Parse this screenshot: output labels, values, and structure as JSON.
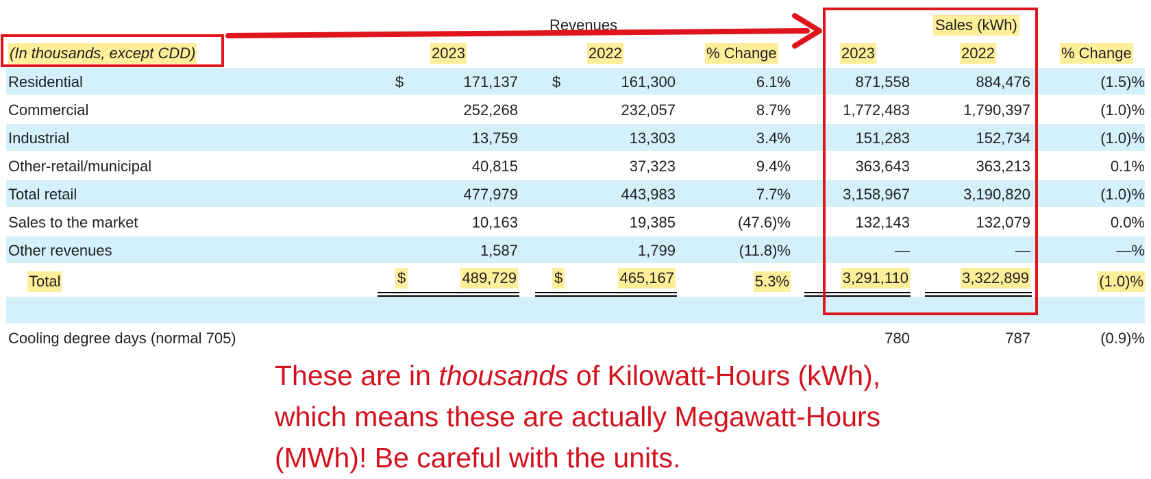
{
  "header": {
    "revenues_label": "Revenues",
    "sales_label": "Sales (kWh)",
    "units_note": "(In thousands, except CDD)",
    "rev_2023": "2023",
    "rev_2022": "2022",
    "rev_change": "% Change",
    "sales_2023": "2023",
    "sales_2022": "2022",
    "sales_change": "% Change"
  },
  "rows": [
    {
      "label": "Residential",
      "dollar": "$",
      "rev2023": "171,137",
      "rev2022": "161,300",
      "revchg": "6.1%",
      "s2023": "871,558",
      "s2022": "884,476",
      "schg": "(1.5)%"
    },
    {
      "label": "Commercial",
      "dollar": "",
      "rev2023": "252,268",
      "rev2022": "232,057",
      "revchg": "8.7%",
      "s2023": "1,772,483",
      "s2022": "1,790,397",
      "schg": "(1.0)%"
    },
    {
      "label": "Industrial",
      "dollar": "",
      "rev2023": "13,759",
      "rev2022": "13,303",
      "revchg": "3.4%",
      "s2023": "151,283",
      "s2022": "152,734",
      "schg": "(1.0)%"
    },
    {
      "label": "Other-retail/municipal",
      "dollar": "",
      "rev2023": "40,815",
      "rev2022": "37,323",
      "revchg": "9.4%",
      "s2023": "363,643",
      "s2022": "363,213",
      "schg": "0.1%"
    },
    {
      "label": "Total retail",
      "dollar": "",
      "rev2023": "477,979",
      "rev2022": "443,983",
      "revchg": "7.7%",
      "s2023": "3,158,967",
      "s2022": "3,190,820",
      "schg": "(1.0)%"
    },
    {
      "label": "Sales to the market",
      "dollar": "",
      "rev2023": "10,163",
      "rev2022": "19,385",
      "revchg": "(47.6)%",
      "s2023": "132,143",
      "s2022": "132,079",
      "schg": "0.0%"
    },
    {
      "label": "Other revenues",
      "dollar": "",
      "rev2023": "1,587",
      "rev2022": "1,799",
      "revchg": "(11.8)%",
      "s2023": "—",
      "s2022": "—",
      "schg": "—%"
    }
  ],
  "total": {
    "label": "Total",
    "dollar": "$",
    "rev2023": "489,729",
    "rev2022": "465,167",
    "revchg": "5.3%",
    "s2023": "3,291,110",
    "s2022": "3,322,899",
    "schg": "(1.0)%"
  },
  "cdd": {
    "label": "Cooling degree days (normal 705)",
    "s2023": "780",
    "s2022": "787",
    "schg": "(0.9)%"
  },
  "annotation": {
    "line1_a": "These are in ",
    "line1_em": "thousands",
    "line1_b": " of Kilowatt-Hours (kWh),",
    "line2": "which means these are actually Megawatt-Hours",
    "line3": "(MWh)! Be careful with the units."
  },
  "colors": {
    "highlight": "#ffee99",
    "band": "#d3f0fb",
    "annotation_red": "#e0141c"
  }
}
